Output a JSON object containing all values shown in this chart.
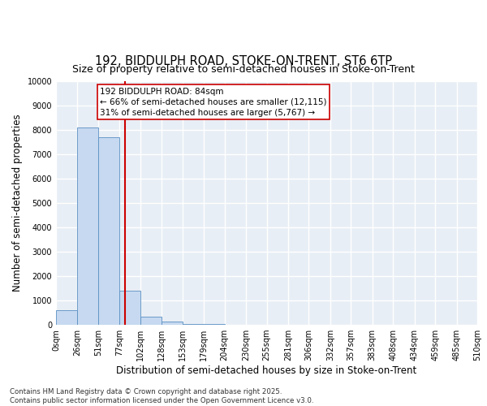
{
  "title1": "192, BIDDULPH ROAD, STOKE-ON-TRENT, ST6 6TP",
  "title2": "Size of property relative to semi-detached houses in Stoke-on-Trent",
  "xlabel": "Distribution of semi-detached houses by size in Stoke-on-Trent",
  "ylabel": "Number of semi-detached properties",
  "bin_edges": [
    0,
    26,
    51,
    77,
    102,
    128,
    153,
    179,
    204,
    230,
    255,
    281,
    306,
    332,
    357,
    383,
    408,
    434,
    459,
    485,
    510
  ],
  "bar_heights": [
    600,
    8100,
    7700,
    1400,
    350,
    150,
    50,
    30,
    5,
    0,
    0,
    0,
    0,
    0,
    0,
    0,
    0,
    0,
    0,
    0
  ],
  "bar_color": "#c6d9f0",
  "bar_edgecolor": "#5a8fc3",
  "property_size": 84,
  "red_line_color": "#cc0000",
  "annotation_line1": "192 BIDDULPH ROAD: 84sqm",
  "annotation_line2": "← 66% of semi-detached houses are smaller (12,115)",
  "annotation_line3": "31% of semi-detached houses are larger (5,767) →",
  "annotation_box_edgecolor": "#cc0000",
  "ylim": [
    0,
    10000
  ],
  "yticks": [
    0,
    1000,
    2000,
    3000,
    4000,
    5000,
    6000,
    7000,
    8000,
    9000,
    10000
  ],
  "background_color": "#e8eef5",
  "grid_color": "#ffffff",
  "footer_text": "Contains HM Land Registry data © Crown copyright and database right 2025.\nContains public sector information licensed under the Open Government Licence v3.0.",
  "title1_fontsize": 10.5,
  "title2_fontsize": 9,
  "tick_label_fontsize": 7,
  "axis_label_fontsize": 8.5,
  "annotation_fontsize": 7.5
}
